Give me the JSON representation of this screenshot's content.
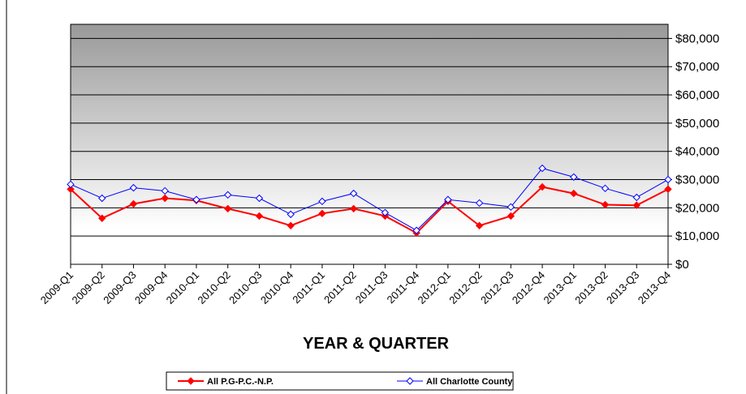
{
  "chart_data": {
    "type": "line",
    "x_label": "YEAR & QUARTER",
    "categories": [
      "2009-Q1",
      "2009-Q2",
      "2009-Q3",
      "2009-Q4",
      "2010-Q1",
      "2010-Q2",
      "2010-Q3",
      "2010-Q4",
      "2011-Q1",
      "2011-Q2",
      "2011-Q3",
      "2011-Q4",
      "2012-Q1",
      "2012-Q2",
      "2012-Q3",
      "2012-Q4",
      "2013-Q1",
      "2013-Q2",
      "2013-Q3",
      "2013-Q4"
    ],
    "series": [
      {
        "name": "All P.G-P.C.-N.P.",
        "color": "#ff0000",
        "values": [
          26600,
          16300,
          21400,
          23400,
          22600,
          19700,
          17100,
          13700,
          18000,
          19700,
          17100,
          11100,
          22300,
          13700,
          17100,
          27400,
          25100,
          21100,
          20900,
          26600
        ]
      },
      {
        "name": "All Charlotte County",
        "color": "#0000ff",
        "values": [
          28300,
          23400,
          27100,
          26000,
          22900,
          24600,
          23400,
          17700,
          22300,
          25100,
          18300,
          12000,
          22900,
          21700,
          20300,
          34000,
          30900,
          26900,
          23700,
          30000
        ]
      }
    ],
    "ylim": [
      0,
      85000
    ],
    "yticks": [
      {
        "value": 0,
        "label": "$0"
      },
      {
        "value": 10000,
        "label": "$10,000"
      },
      {
        "value": 20000,
        "label": "$20,000"
      },
      {
        "value": 30000,
        "label": "$30,000"
      },
      {
        "value": 40000,
        "label": "$40,000"
      },
      {
        "value": 50000,
        "label": "$50,000"
      },
      {
        "value": 60000,
        "label": "$60,000"
      },
      {
        "value": 70000,
        "label": "$70,000"
      },
      {
        "value": 80000,
        "label": "$80,000"
      }
    ],
    "grid": true,
    "y_axis_side": "right",
    "legend_position": "bottom"
  }
}
